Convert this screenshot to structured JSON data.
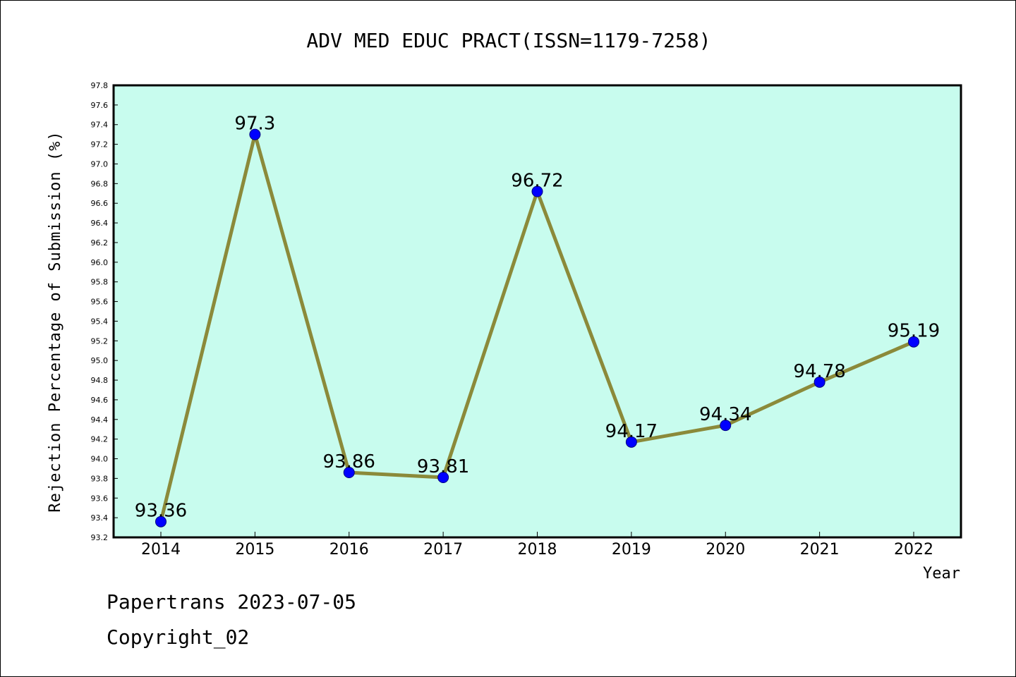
{
  "chart_data": {
    "type": "line",
    "title": "ADV MED EDUC PRACT(ISSN=1179-7258)",
    "xlabel": "Year",
    "ylabel": "Rejection Percentage of Submission (%)",
    "categories": [
      "2014",
      "2015",
      "2016",
      "2017",
      "2018",
      "2019",
      "2020",
      "2021",
      "2022"
    ],
    "series": [
      {
        "values": [
          93.36,
          97.3,
          93.86,
          93.81,
          96.72,
          94.17,
          94.34,
          94.78,
          95.19
        ],
        "labels": [
          "93.36",
          "97.3",
          "93.86",
          "93.81",
          "96.72",
          "94.17",
          "94.34",
          "94.78",
          "95.19"
        ]
      }
    ],
    "ylim": [
      93.2,
      97.8
    ],
    "yticks": [
      "93.2",
      "93.4",
      "93.6",
      "93.8",
      "94.0",
      "94.2",
      "94.4",
      "94.6",
      "94.8",
      "95.0",
      "95.2",
      "95.4",
      "95.6",
      "95.8",
      "96.0",
      "96.2",
      "96.4",
      "96.6",
      "96.8",
      "97.0",
      "97.2",
      "97.4",
      "97.6",
      "97.8"
    ],
    "grid": false,
    "colors": {
      "plot_background": "#c8fcee",
      "line": "#8b8a3a",
      "marker": "#0000ff"
    }
  },
  "footer": {
    "line1": "Papertrans 2023-07-05",
    "line2": "Copyright_02"
  }
}
